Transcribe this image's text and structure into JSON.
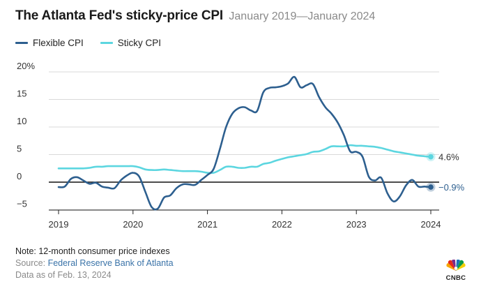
{
  "header": {
    "title": "The Atlanta Fed's sticky-price CPI",
    "subtitle": "January 2019—January 2024"
  },
  "legend": [
    {
      "label": "Flexible CPI",
      "color": "#2d5f8f"
    },
    {
      "label": "Sticky CPI",
      "color": "#5cd6e0"
    }
  ],
  "footer": {
    "note": "Note: 12-month consumer price indexes",
    "source_prefix": "Source: ",
    "source_link": "Federal Reserve Bank of Atlanta",
    "as_of": "Data as of Feb. 13, 2024"
  },
  "logo": {
    "text": "CNBC"
  },
  "chart_data": {
    "type": "line",
    "title": "The Atlanta Fed's sticky-price CPI",
    "subtitle": "January 2019—January 2024",
    "xlabel": "",
    "ylabel": "",
    "x_ticks": [
      2019,
      2020,
      2021,
      2022,
      2023,
      2024
    ],
    "y_ticks": [
      -5,
      0,
      5,
      10,
      15,
      20
    ],
    "y_tick_labels": [
      "−5",
      "0",
      "5",
      "10",
      "15",
      "20%"
    ],
    "xlim": [
      2018.92,
      2024.0
    ],
    "ylim": [
      -6.5,
      21
    ],
    "grid": "horizontal",
    "end_labels": {
      "Flexible CPI": "−0.9%",
      "Sticky CPI": "4.6%"
    },
    "series": [
      {
        "name": "Flexible CPI",
        "color": "#2d5f8f",
        "x": [
          2019.0,
          2019.083,
          2019.167,
          2019.25,
          2019.333,
          2019.417,
          2019.5,
          2019.583,
          2019.667,
          2019.75,
          2019.833,
          2019.917,
          2020.0,
          2020.083,
          2020.167,
          2020.25,
          2020.333,
          2020.417,
          2020.5,
          2020.583,
          2020.667,
          2020.75,
          2020.833,
          2020.917,
          2021.0,
          2021.083,
          2021.167,
          2021.25,
          2021.333,
          2021.417,
          2021.5,
          2021.583,
          2021.667,
          2021.75,
          2021.833,
          2021.917,
          2022.0,
          2022.083,
          2022.167,
          2022.25,
          2022.333,
          2022.417,
          2022.5,
          2022.583,
          2022.667,
          2022.75,
          2022.833,
          2022.917,
          2023.0,
          2023.083,
          2023.167,
          2023.25,
          2023.333,
          2023.417,
          2023.5,
          2023.583,
          2023.667,
          2023.75,
          2023.833,
          2023.917,
          2024.0
        ],
        "values": [
          -0.9,
          -0.8,
          0.6,
          0.9,
          0.3,
          -0.3,
          -0.1,
          -0.8,
          -1.0,
          -1.1,
          0.3,
          1.2,
          1.7,
          1.0,
          -1.8,
          -4.5,
          -4.8,
          -2.8,
          -2.4,
          -1.1,
          -0.4,
          -0.4,
          -0.5,
          0.4,
          1.3,
          2.4,
          6.0,
          10.0,
          12.4,
          13.4,
          13.6,
          13.0,
          12.9,
          16.3,
          17.1,
          17.2,
          17.4,
          17.9,
          19.1,
          17.2,
          17.6,
          17.8,
          15.4,
          13.6,
          12.4,
          10.8,
          8.5,
          5.6,
          5.5,
          4.6,
          1.0,
          0.3,
          0.8,
          -2.0,
          -3.5,
          -2.6,
          -0.6,
          0.4,
          -0.8,
          -0.8,
          -0.9
        ]
      },
      {
        "name": "Sticky CPI",
        "color": "#5cd6e0",
        "x": [
          2019.0,
          2019.083,
          2019.167,
          2019.25,
          2019.333,
          2019.417,
          2019.5,
          2019.583,
          2019.667,
          2019.75,
          2019.833,
          2019.917,
          2020.0,
          2020.083,
          2020.167,
          2020.25,
          2020.333,
          2020.417,
          2020.5,
          2020.583,
          2020.667,
          2020.75,
          2020.833,
          2020.917,
          2021.0,
          2021.083,
          2021.167,
          2021.25,
          2021.333,
          2021.417,
          2021.5,
          2021.583,
          2021.667,
          2021.75,
          2021.833,
          2021.917,
          2022.0,
          2022.083,
          2022.167,
          2022.25,
          2022.333,
          2022.417,
          2022.5,
          2022.583,
          2022.667,
          2022.75,
          2022.833,
          2022.917,
          2023.0,
          2023.083,
          2023.167,
          2023.25,
          2023.333,
          2023.417,
          2023.5,
          2023.583,
          2023.667,
          2023.75,
          2023.833,
          2023.917,
          2024.0
        ],
        "values": [
          2.5,
          2.5,
          2.5,
          2.5,
          2.5,
          2.6,
          2.8,
          2.8,
          2.9,
          2.9,
          2.9,
          2.9,
          2.9,
          2.7,
          2.3,
          2.2,
          2.2,
          2.3,
          2.2,
          2.1,
          2.0,
          2.0,
          2.0,
          1.9,
          1.7,
          1.7,
          2.2,
          2.8,
          2.8,
          2.6,
          2.6,
          2.8,
          2.8,
          3.3,
          3.5,
          3.9,
          4.2,
          4.5,
          4.7,
          4.9,
          5.1,
          5.5,
          5.6,
          6.0,
          6.5,
          6.5,
          6.5,
          6.7,
          6.6,
          6.6,
          6.5,
          6.4,
          6.2,
          5.9,
          5.6,
          5.4,
          5.2,
          5.0,
          4.8,
          4.7,
          4.6
        ]
      }
    ]
  }
}
